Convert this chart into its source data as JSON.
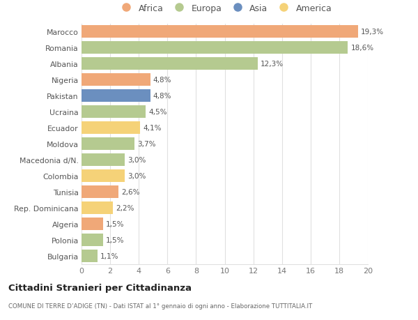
{
  "categories": [
    "Marocco",
    "Romania",
    "Albania",
    "Nigeria",
    "Pakistan",
    "Ucraina",
    "Ecuador",
    "Moldova",
    "Macedonia d/N.",
    "Colombia",
    "Tunisia",
    "Rep. Dominicana",
    "Algeria",
    "Polonia",
    "Bulgaria"
  ],
  "values": [
    19.3,
    18.6,
    12.3,
    4.8,
    4.8,
    4.5,
    4.1,
    3.7,
    3.0,
    3.0,
    2.6,
    2.2,
    1.5,
    1.5,
    1.1
  ],
  "labels": [
    "19,3%",
    "18,6%",
    "12,3%",
    "4,8%",
    "4,8%",
    "4,5%",
    "4,1%",
    "3,7%",
    "3,0%",
    "3,0%",
    "2,6%",
    "2,2%",
    "1,5%",
    "1,5%",
    "1,1%"
  ],
  "continents": [
    "Africa",
    "Europa",
    "Europa",
    "Africa",
    "Asia",
    "Europa",
    "America",
    "Europa",
    "Europa",
    "America",
    "Africa",
    "America",
    "Africa",
    "Europa",
    "Europa"
  ],
  "colors": {
    "Africa": "#F0A878",
    "Europa": "#B5CA90",
    "Asia": "#6B8FBF",
    "America": "#F5D278"
  },
  "legend_order": [
    "Africa",
    "Europa",
    "Asia",
    "America"
  ],
  "xlim": [
    0,
    20
  ],
  "xticks": [
    0,
    2,
    4,
    6,
    8,
    10,
    12,
    14,
    16,
    18,
    20
  ],
  "title": "Cittadini Stranieri per Cittadinanza",
  "subtitle": "COMUNE DI TERRE D’ADIGE (TN) - Dati ISTAT al 1° gennaio di ogni anno - Elaborazione TUTTITALIA.IT",
  "bg_color": "#ffffff",
  "grid_color": "#e0e0e0",
  "bar_height": 0.82
}
